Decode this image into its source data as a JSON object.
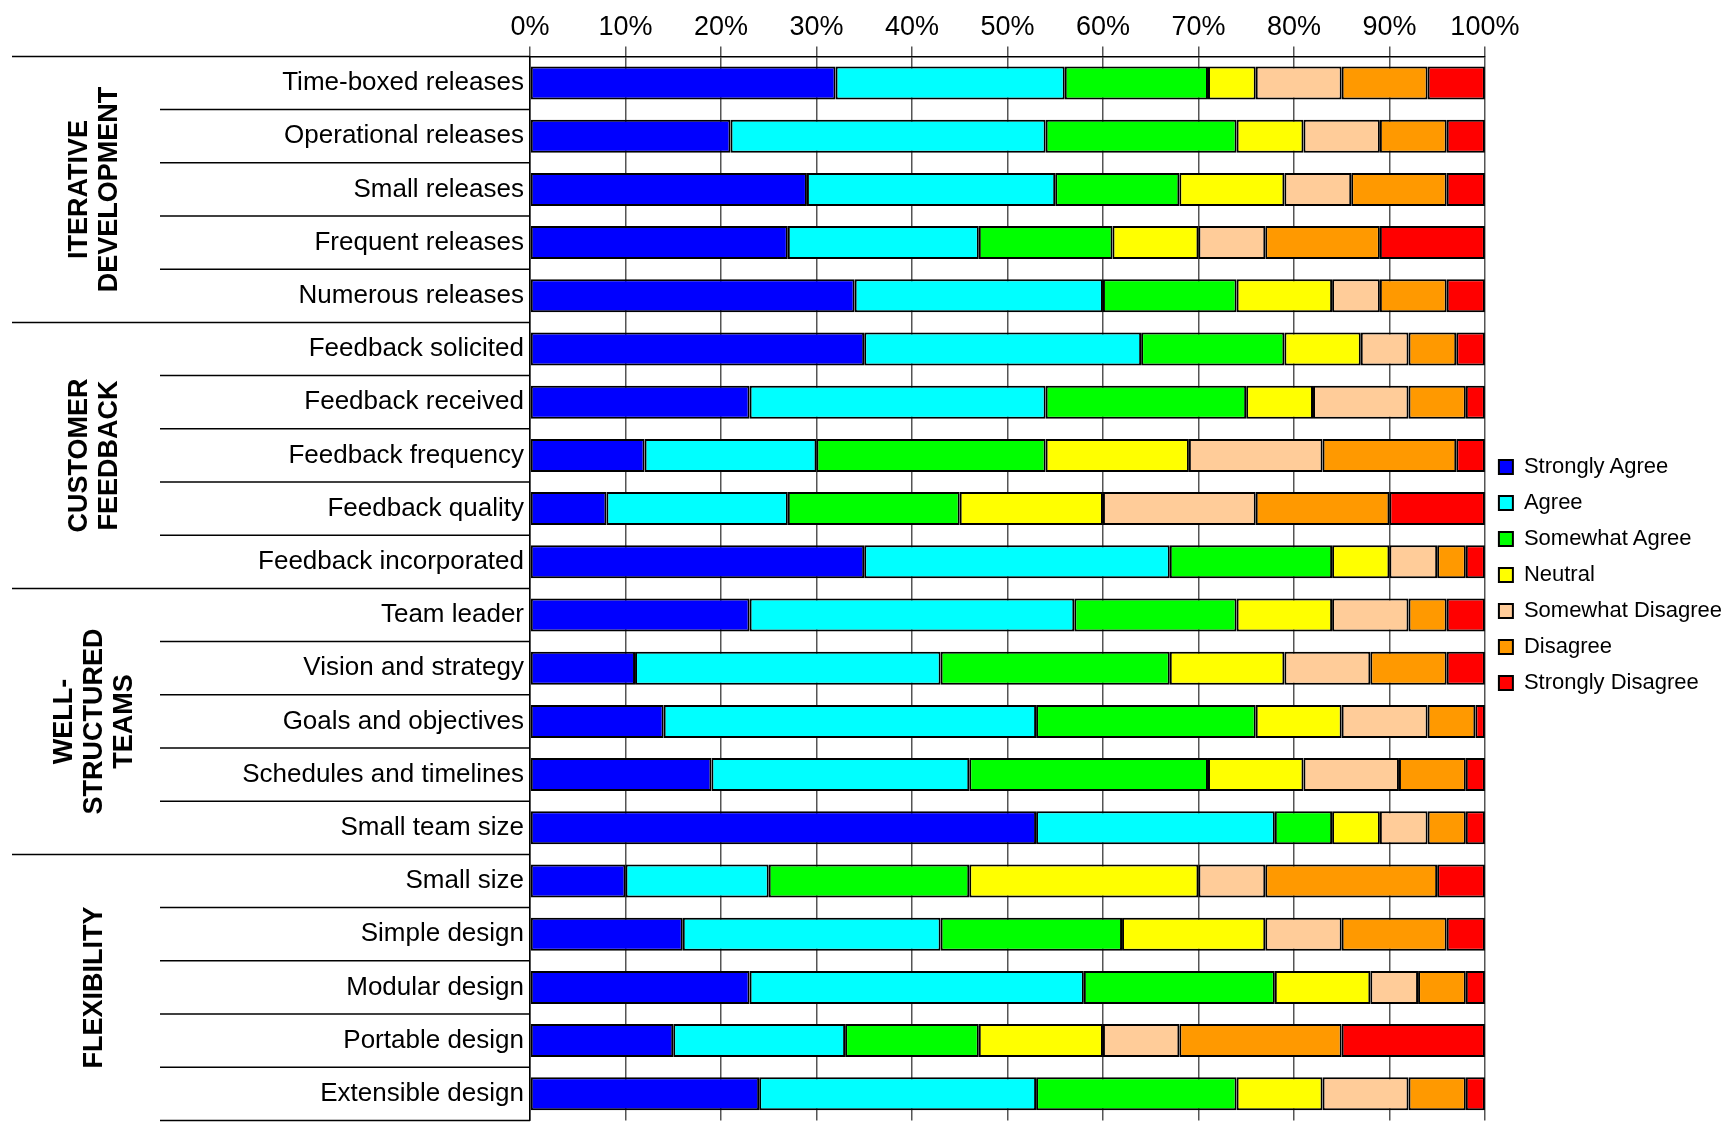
{
  "chart_data": {
    "type": "bar",
    "orientation": "horizontal",
    "stacked": true,
    "categories": [
      "Time-boxed releases",
      "Operational releases",
      "Small releases",
      "Frequent releases",
      "Numerous releases",
      "Feedback solicited",
      "Feedback received",
      "Feedback frequency",
      "Feedback quality",
      "Feedback incorporated",
      "Team leader",
      "Vision and strategy",
      "Goals and objectives",
      "Schedules and timelines",
      "Small team size",
      "Small size",
      "Simple design",
      "Modular design",
      "Portable design",
      "Extensible design"
    ],
    "series": [
      {
        "name": "Strongly Agree",
        "color": "#0000ff",
        "values": [
          32,
          21,
          29,
          27,
          34,
          35,
          23,
          12,
          8,
          35,
          23,
          11,
          14,
          19,
          53,
          10,
          16,
          23,
          15,
          24
        ]
      },
      {
        "name": "Agree",
        "color": "#00ffff",
        "values": [
          24,
          33,
          26,
          20,
          26,
          29,
          31,
          18,
          19,
          32,
          34,
          32,
          39,
          27,
          25,
          15,
          27,
          35,
          18,
          29
        ]
      },
      {
        "name": "Somewhat Agree",
        "color": "#00ff00",
        "values": [
          15,
          20,
          13,
          14,
          14,
          15,
          21,
          24,
          18,
          17,
          17,
          24,
          23,
          25,
          6,
          21,
          19,
          20,
          14,
          21
        ]
      },
      {
        "name": "Neutral",
        "color": "#ffff00",
        "values": [
          5,
          7,
          11,
          9,
          10,
          8,
          7,
          15,
          15,
          6,
          10,
          12,
          9,
          10,
          5,
          24,
          15,
          10,
          13,
          9
        ]
      },
      {
        "name": "Somewhat Disagree",
        "color": "#ffcc99",
        "values": [
          9,
          8,
          7,
          7,
          5,
          5,
          10,
          14,
          16,
          5,
          8,
          9,
          9,
          10,
          5,
          7,
          8,
          5,
          8,
          9
        ]
      },
      {
        "name": "Disagree",
        "color": "#ff9900",
        "values": [
          9,
          7,
          10,
          12,
          7,
          5,
          6,
          14,
          14,
          3,
          4,
          8,
          5,
          7,
          4,
          18,
          11,
          5,
          17,
          6
        ]
      },
      {
        "name": "Strongly Disagree",
        "color": "#ff0000",
        "values": [
          6,
          4,
          4,
          11,
          4,
          3,
          2,
          3,
          10,
          2,
          4,
          4,
          1,
          2,
          2,
          5,
          4,
          2,
          15,
          2
        ]
      }
    ],
    "xlim": [
      0,
      100
    ],
    "xticks": [
      {
        "value": 0,
        "label": "0%"
      },
      {
        "value": 10,
        "label": "10%"
      },
      {
        "value": 20,
        "label": "20%"
      },
      {
        "value": 30,
        "label": "30%"
      },
      {
        "value": 40,
        "label": "40%"
      },
      {
        "value": 50,
        "label": "50%"
      },
      {
        "value": 60,
        "label": "60%"
      },
      {
        "value": 70,
        "label": "70%"
      },
      {
        "value": 80,
        "label": "80%"
      },
      {
        "value": 90,
        "label": "90%"
      },
      {
        "value": 100,
        "label": "100%"
      }
    ],
    "grid": "x",
    "legend": "right",
    "annotations": [
      "ITERATIVE\nDEVELOPMENT",
      "CUSTOMER\nFEEDBACK",
      "WELL-\nSTRUCTURED\nTEAMS",
      "FLEXIBILITY"
    ]
  }
}
